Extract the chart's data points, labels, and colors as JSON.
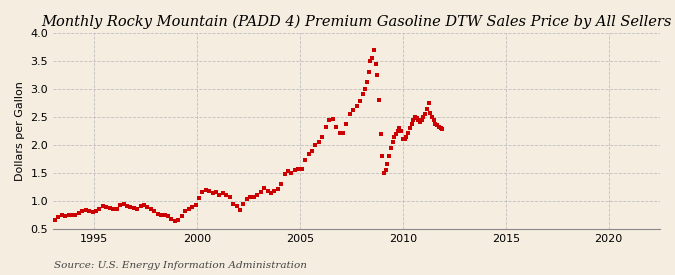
{
  "title": "Monthly Rocky Mountain (PADD 4) Premium Gasoline DTW Sales Price by All Sellers",
  "ylabel": "Dollars per Gallon",
  "source": "Source: U.S. Energy Information Administration",
  "bg_color": "#f5ede0",
  "plot_bg_color": "#f5ede0",
  "line_color": "#cc0000",
  "marker": "s",
  "marker_size": 3.0,
  "ylim": [
    0.5,
    4.0
  ],
  "xlim_start": 1993.0,
  "xlim_end": 2022.5,
  "yticks": [
    0.5,
    1.0,
    1.5,
    2.0,
    2.5,
    3.0,
    3.5,
    4.0
  ],
  "xticks": [
    1995,
    2000,
    2005,
    2010,
    2015,
    2020
  ],
  "grid_color": "#bbbbbb",
  "title_fontsize": 10.5,
  "label_fontsize": 8,
  "tick_fontsize": 8,
  "source_fontsize": 7.5,
  "data": [
    [
      1993.08,
      0.65
    ],
    [
      1993.25,
      0.7
    ],
    [
      1993.42,
      0.75
    ],
    [
      1993.58,
      0.73
    ],
    [
      1993.75,
      0.75
    ],
    [
      1993.92,
      0.74
    ],
    [
      1994.08,
      0.75
    ],
    [
      1994.25,
      0.78
    ],
    [
      1994.42,
      0.82
    ],
    [
      1994.58,
      0.83
    ],
    [
      1994.75,
      0.81
    ],
    [
      1994.92,
      0.8
    ],
    [
      1995.08,
      0.82
    ],
    [
      1995.25,
      0.86
    ],
    [
      1995.42,
      0.9
    ],
    [
      1995.58,
      0.88
    ],
    [
      1995.75,
      0.87
    ],
    [
      1995.92,
      0.86
    ],
    [
      1996.08,
      0.85
    ],
    [
      1996.25,
      0.92
    ],
    [
      1996.42,
      0.94
    ],
    [
      1996.58,
      0.9
    ],
    [
      1996.75,
      0.89
    ],
    [
      1996.92,
      0.87
    ],
    [
      1997.08,
      0.86
    ],
    [
      1997.25,
      0.91
    ],
    [
      1997.42,
      0.92
    ],
    [
      1997.58,
      0.89
    ],
    [
      1997.75,
      0.85
    ],
    [
      1997.92,
      0.81
    ],
    [
      1998.08,
      0.77
    ],
    [
      1998.25,
      0.74
    ],
    [
      1998.42,
      0.74
    ],
    [
      1998.58,
      0.72
    ],
    [
      1998.75,
      0.68
    ],
    [
      1998.92,
      0.63
    ],
    [
      1999.08,
      0.65
    ],
    [
      1999.25,
      0.73
    ],
    [
      1999.42,
      0.82
    ],
    [
      1999.58,
      0.86
    ],
    [
      1999.75,
      0.89
    ],
    [
      1999.92,
      0.93
    ],
    [
      2000.08,
      1.05
    ],
    [
      2000.25,
      1.15
    ],
    [
      2000.42,
      1.2
    ],
    [
      2000.58,
      1.18
    ],
    [
      2000.75,
      1.13
    ],
    [
      2000.92,
      1.16
    ],
    [
      2001.08,
      1.1
    ],
    [
      2001.25,
      1.13
    ],
    [
      2001.42,
      1.1
    ],
    [
      2001.58,
      1.06
    ],
    [
      2001.75,
      0.95
    ],
    [
      2001.92,
      0.9
    ],
    [
      2002.08,
      0.84
    ],
    [
      2002.25,
      0.95
    ],
    [
      2002.42,
      1.04
    ],
    [
      2002.58,
      1.06
    ],
    [
      2002.75,
      1.06
    ],
    [
      2002.92,
      1.1
    ],
    [
      2003.08,
      1.15
    ],
    [
      2003.25,
      1.23
    ],
    [
      2003.42,
      1.18
    ],
    [
      2003.58,
      1.14
    ],
    [
      2003.75,
      1.17
    ],
    [
      2003.92,
      1.21
    ],
    [
      2004.08,
      1.3
    ],
    [
      2004.25,
      1.48
    ],
    [
      2004.42,
      1.53
    ],
    [
      2004.58,
      1.5
    ],
    [
      2004.75,
      1.55
    ],
    [
      2004.92,
      1.56
    ],
    [
      2005.08,
      1.57
    ],
    [
      2005.25,
      1.73
    ],
    [
      2005.42,
      1.84
    ],
    [
      2005.58,
      1.9
    ],
    [
      2005.75,
      2.0
    ],
    [
      2005.92,
      2.05
    ],
    [
      2006.08,
      2.15
    ],
    [
      2006.25,
      2.32
    ],
    [
      2006.42,
      2.45
    ],
    [
      2006.58,
      2.46
    ],
    [
      2006.75,
      2.32
    ],
    [
      2006.92,
      2.22
    ],
    [
      2007.08,
      2.22
    ],
    [
      2007.25,
      2.37
    ],
    [
      2007.42,
      2.55
    ],
    [
      2007.58,
      2.62
    ],
    [
      2007.75,
      2.7
    ],
    [
      2007.92,
      2.78
    ],
    [
      2008.08,
      2.92
    ],
    [
      2008.17,
      3.0
    ],
    [
      2008.25,
      3.12
    ],
    [
      2008.33,
      3.3
    ],
    [
      2008.42,
      3.5
    ],
    [
      2008.5,
      3.55
    ],
    [
      2008.58,
      3.7
    ],
    [
      2008.67,
      3.45
    ],
    [
      2008.75,
      3.25
    ],
    [
      2008.83,
      2.8
    ],
    [
      2008.92,
      2.2
    ],
    [
      2009.0,
      1.8
    ],
    [
      2009.08,
      1.5
    ],
    [
      2009.17,
      1.55
    ],
    [
      2009.25,
      1.65
    ],
    [
      2009.33,
      1.8
    ],
    [
      2009.42,
      1.95
    ],
    [
      2009.5,
      2.05
    ],
    [
      2009.58,
      2.15
    ],
    [
      2009.67,
      2.2
    ],
    [
      2009.75,
      2.25
    ],
    [
      2009.83,
      2.3
    ],
    [
      2009.92,
      2.25
    ],
    [
      2010.0,
      2.1
    ],
    [
      2010.08,
      2.1
    ],
    [
      2010.17,
      2.15
    ],
    [
      2010.25,
      2.22
    ],
    [
      2010.33,
      2.3
    ],
    [
      2010.42,
      2.38
    ],
    [
      2010.5,
      2.45
    ],
    [
      2010.58,
      2.5
    ],
    [
      2010.67,
      2.48
    ],
    [
      2010.75,
      2.45
    ],
    [
      2010.83,
      2.42
    ],
    [
      2010.92,
      2.45
    ],
    [
      2011.0,
      2.5
    ],
    [
      2011.08,
      2.55
    ],
    [
      2011.17,
      2.65
    ],
    [
      2011.25,
      2.75
    ],
    [
      2011.33,
      2.58
    ],
    [
      2011.42,
      2.5
    ],
    [
      2011.5,
      2.45
    ],
    [
      2011.58,
      2.38
    ],
    [
      2011.67,
      2.35
    ],
    [
      2011.75,
      2.32
    ],
    [
      2011.83,
      2.3
    ],
    [
      2011.92,
      2.28
    ]
  ]
}
